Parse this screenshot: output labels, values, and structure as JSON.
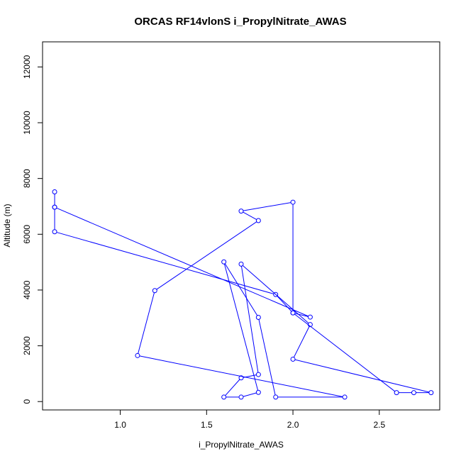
{
  "chart_data": {
    "type": "line",
    "title": "ORCAS RF14vlonS i_PropylNitrate_AWAS",
    "xlabel": "i_PropylNitrate_AWAS",
    "ylabel": "Altitude (m)",
    "xlim": [
      0.55,
      2.85
    ],
    "ylim": [
      -300,
      12900
    ],
    "xticks": [
      1.0,
      1.5,
      2.0,
      2.5
    ],
    "xtick_labels": [
      "1.0",
      "1.5",
      "2.0",
      "2.5"
    ],
    "yticks": [
      0,
      2000,
      4000,
      6000,
      8000,
      10000,
      12000
    ],
    "ytick_labels": [
      "0",
      "2000",
      "4000",
      "6000",
      "8000",
      "10000",
      "12000"
    ],
    "grid": false,
    "color": "#0000ff",
    "marker": "open-circle",
    "series": [
      {
        "x": [
          0.62,
          0.62,
          0.62,
          1.9,
          2.0,
          2.6,
          2.7,
          2.8,
          2.0,
          2.1,
          1.7,
          1.8,
          1.7,
          1.6,
          1.7,
          1.8,
          1.6,
          1.8,
          1.9,
          2.3,
          1.1,
          1.2,
          1.8,
          1.7,
          2.0,
          2.0,
          2.1,
          0.62
        ],
        "y": [
          7520,
          6970,
          6090,
          3840,
          3180,
          320,
          320,
          320,
          1520,
          2760,
          4930,
          970,
          850,
          160,
          160,
          330,
          5010,
          3020,
          160,
          160,
          1650,
          3980,
          6490,
          6830,
          7150,
          3180,
          3030,
          6970
        ]
      }
    ]
  }
}
